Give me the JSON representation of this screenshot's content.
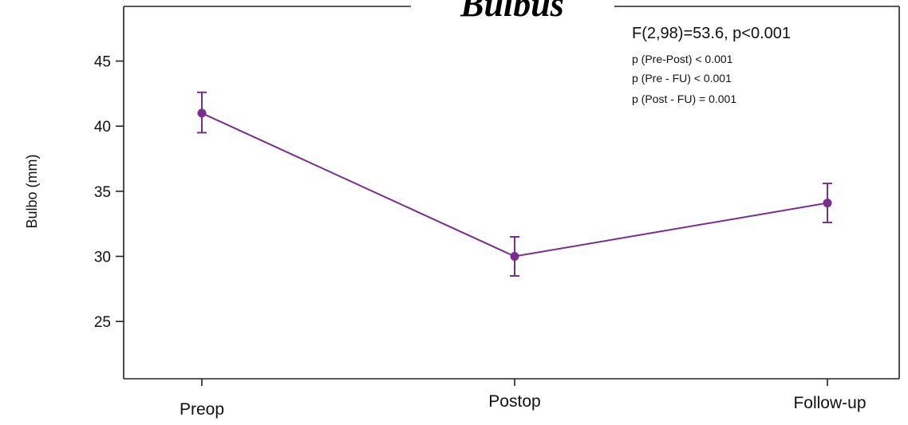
{
  "chart_data": {
    "type": "line",
    "title": "Bulbus",
    "xlabel": "",
    "ylabel": "Bulbo (mm)",
    "categories": [
      "Preop",
      "Postop",
      "Follow-up"
    ],
    "series": [
      {
        "values": [
          41.0,
          30.0,
          34.1
        ],
        "error_low": [
          39.5,
          28.5,
          32.6
        ],
        "error_high": [
          42.6,
          31.5,
          35.6
        ],
        "color": "#7B2C8F"
      }
    ],
    "yticks": [
      25,
      30,
      35,
      40,
      45
    ],
    "ylim": [
      20.6,
      49.2
    ],
    "grid": false,
    "annotations": {
      "main": "F(2,98)=53.6, p<0.001",
      "lines": [
        "p (Pre-Post) < 0.001",
        "p (Pre - FU) < 0.001",
        "p (Post - FU) = 0.001"
      ]
    }
  }
}
